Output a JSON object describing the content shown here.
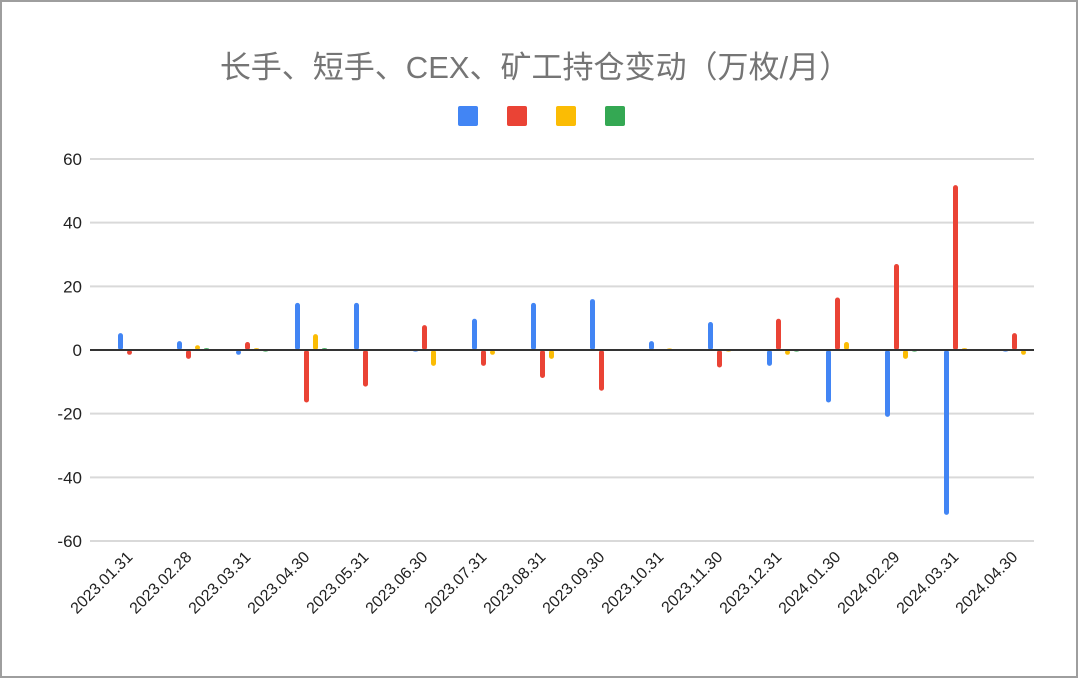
{
  "chart_data": {
    "type": "bar",
    "title": "长手、短手、CEX、矿工持仓变动（万枚/月）",
    "xlabel": "",
    "ylabel": "",
    "ylim": [
      -60,
      60
    ],
    "yticks": [
      60,
      40,
      20,
      0,
      -20,
      -40,
      -60
    ],
    "grid": true,
    "legend_position": "top",
    "categories": [
      "2023.01.31",
      "2023.02.28",
      "2023.03.31",
      "2023.04.30",
      "2023.05.31",
      "2023.06.30",
      "2023.07.31",
      "2023.08.31",
      "2023.09.30",
      "2023.10.31",
      "2023.11.30",
      "2023.12.31",
      "2024.01.30",
      "2024.02.29",
      "2024.03.31",
      "2024.04.30"
    ],
    "series": [
      {
        "color": "#4285f4",
        "values": [
          5.3,
          2.8,
          -1.5,
          14.8,
          14.8,
          -0.5,
          9.8,
          14.8,
          16,
          2.8,
          8.8,
          -5,
          -16.5,
          -21,
          -51.8,
          -0.5
        ]
      },
      {
        "color": "#ea4335",
        "values": [
          -1.5,
          -2.8,
          2.5,
          -16.5,
          -11.5,
          7.8,
          -5,
          -8.8,
          -12.8,
          0,
          -5.5,
          9.8,
          16.5,
          27,
          51.8,
          5.3
        ]
      },
      {
        "color": "#fbbc04",
        "values": [
          0,
          1.5,
          0.6,
          5,
          0,
          -5,
          -1.5,
          -2.8,
          0,
          0.5,
          -0.5,
          -1.5,
          2.5,
          -2.8,
          0.6,
          -1.5
        ]
      },
      {
        "color": "#34a853",
        "values": [
          0,
          0.6,
          -0.5,
          0.6,
          0,
          0,
          0,
          0,
          0,
          0,
          0,
          -0.5,
          0,
          -0.5,
          0,
          0
        ]
      }
    ]
  }
}
